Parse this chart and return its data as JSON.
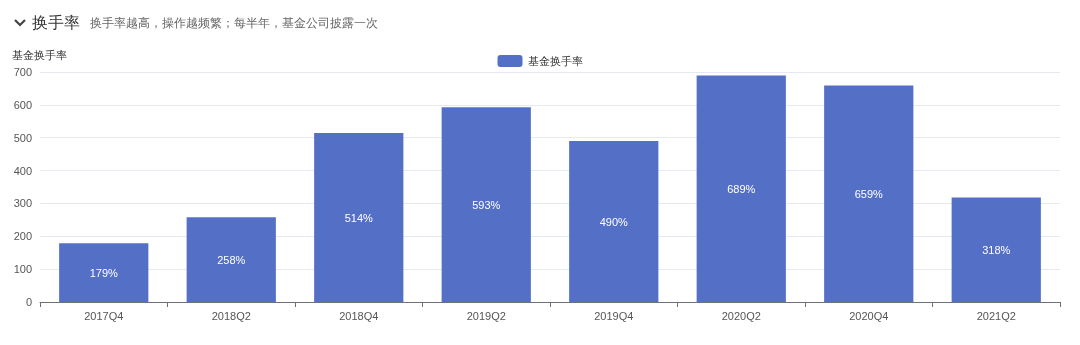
{
  "chart_data": {
    "type": "bar",
    "title": "换手率",
    "subtitle": "换手率越高，操作越频繁；每半年，基金公司披露一次",
    "ylabel": "基金换手率",
    "categories": [
      "2017Q4",
      "2018Q2",
      "2018Q4",
      "2019Q2",
      "2019Q4",
      "2020Q2",
      "2020Q4",
      "2021Q2"
    ],
    "series": [
      {
        "name": "基金换手率",
        "color": "#5470c6",
        "values": [
          179,
          258,
          514,
          593,
          490,
          689,
          659,
          318
        ],
        "value_labels": [
          "179%",
          "258%",
          "514%",
          "593%",
          "490%",
          "689%",
          "659%",
          "318%"
        ]
      }
    ],
    "ylim": [
      0,
      700
    ],
    "yticks": [
      0,
      100,
      200,
      300,
      400,
      500,
      600,
      700
    ],
    "grid": "y",
    "legend": "top"
  }
}
